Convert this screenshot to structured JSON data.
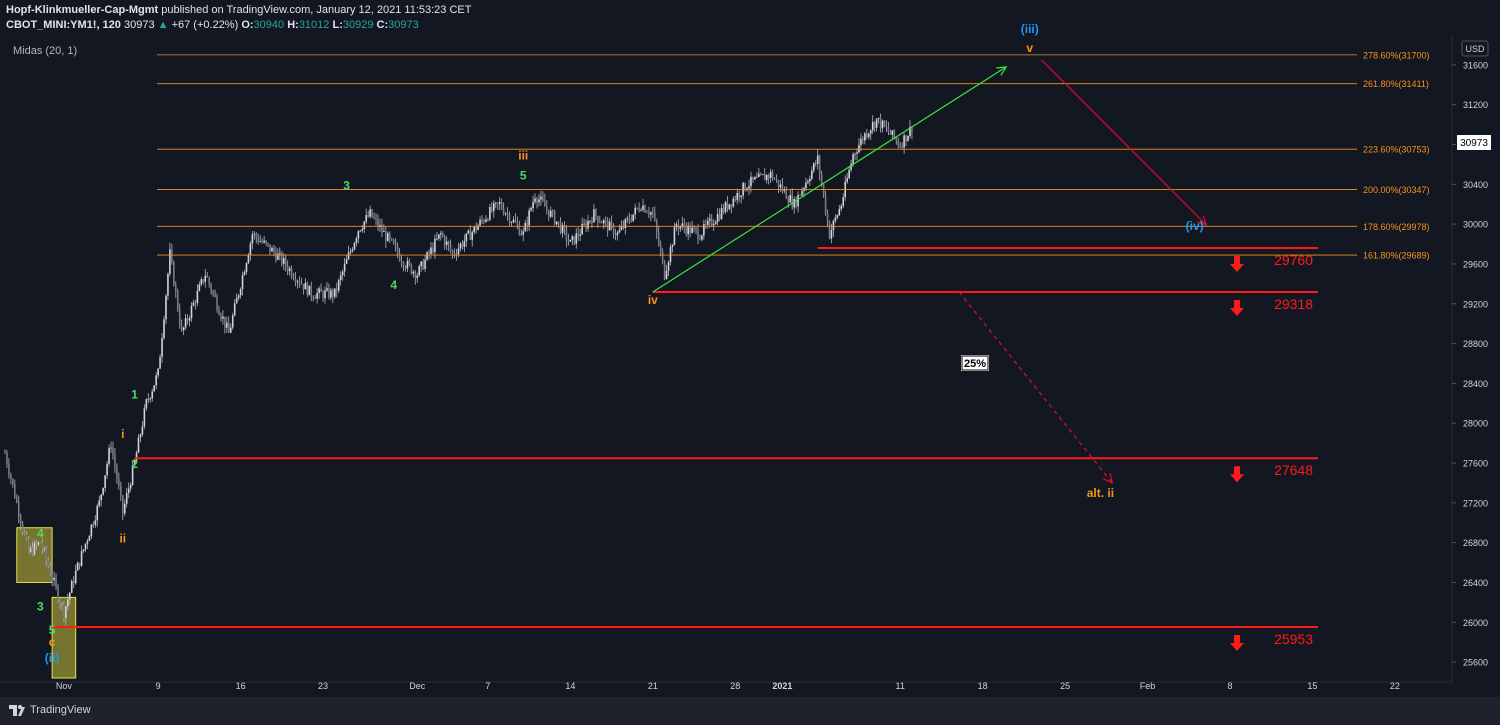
{
  "header": {
    "publisher": "Hopf-Klinkmueller-Cap-Mgmt",
    "published_text": "published on TradingView.com, January 12, 2021 11:53:23 CET",
    "symbol": "CBOT_MINI:YM1!, 120",
    "last": "30973",
    "change_arrow": "▲",
    "change": "+67 (+0.22%)",
    "o_label": "O:",
    "o": "30940",
    "h_label": "H:",
    "h": "31012",
    "l_label": "L:",
    "l": "30929",
    "c_label": "C:",
    "c": "30973"
  },
  "indicator_label": "Midas (20, 1)",
  "currency": "USD",
  "footer": {
    "brand": "TradingView",
    "brand_icon": "tradingview-logo-icon"
  },
  "colors": {
    "background": "#131722",
    "candle": "#b2b5be",
    "wave_green": "#4cd964",
    "wave_orange": "#f7931a",
    "wave_blue": "#2196f3",
    "support": "#ff1a1a",
    "fib": "#f7931a"
  },
  "chart_data": {
    "type": "candlestick",
    "title": "",
    "xlabel": "",
    "ylabel": "",
    "ylim": [
      25400,
      31900
    ],
    "xlim": [
      "2020-10-27",
      "2021-02-26"
    ],
    "y_ticks": [
      25600,
      26000,
      26400,
      26800,
      27200,
      27600,
      28000,
      28400,
      28800,
      29200,
      29600,
      30000,
      30400,
      30800,
      31200,
      31600
    ],
    "x_ticks": [
      {
        "date": "2020-11-01",
        "label": "Nov"
      },
      {
        "date": "2020-11-09",
        "label": "9"
      },
      {
        "date": "2020-11-16",
        "label": "16"
      },
      {
        "date": "2020-11-23",
        "label": "23"
      },
      {
        "date": "2020-12-01",
        "label": "Dec"
      },
      {
        "date": "2020-12-07",
        "label": "7"
      },
      {
        "date": "2020-12-14",
        "label": "14"
      },
      {
        "date": "2020-12-21",
        "label": "21"
      },
      {
        "date": "2020-12-28",
        "label": "28"
      },
      {
        "date": "2021-01-01",
        "label": "2021"
      },
      {
        "date": "2021-01-11",
        "label": "11"
      },
      {
        "date": "2021-01-18",
        "label": "18"
      },
      {
        "date": "2021-01-25",
        "label": "25"
      },
      {
        "date": "2021-02-01",
        "label": "Feb"
      },
      {
        "date": "2021-02-08",
        "label": "8"
      },
      {
        "date": "2021-02-15",
        "label": "15"
      },
      {
        "date": "2021-02-22",
        "label": "22"
      }
    ],
    "price_path": [
      [
        "2020-10-27",
        27700
      ],
      [
        "2020-10-29",
        26700
      ],
      [
        "2020-10-30",
        26800
      ],
      [
        "2020-11-01",
        26100
      ],
      [
        "2020-11-02",
        26500
      ],
      [
        "2020-11-04",
        27200
      ],
      [
        "2020-11-05",
        27800
      ],
      [
        "2020-11-06",
        27100
      ],
      [
        "2020-11-07",
        27600
      ],
      [
        "2020-11-08",
        28200
      ],
      [
        "2020-11-09",
        28500
      ],
      [
        "2020-11-10",
        29700
      ],
      [
        "2020-11-11",
        28900
      ],
      [
        "2020-11-13",
        29500
      ],
      [
        "2020-11-15",
        28900
      ],
      [
        "2020-11-17",
        29900
      ],
      [
        "2020-11-19",
        29700
      ],
      [
        "2020-11-22",
        29300
      ],
      [
        "2020-11-24",
        29300
      ],
      [
        "2020-11-26",
        29950
      ],
      [
        "2020-11-27",
        30100
      ],
      [
        "2020-11-30",
        29600
      ],
      [
        "2020-12-01",
        29500
      ],
      [
        "2020-12-03",
        29900
      ],
      [
        "2020-12-04",
        29700
      ],
      [
        "2020-12-07",
        30100
      ],
      [
        "2020-12-08",
        30200
      ],
      [
        "2020-12-10",
        29900
      ],
      [
        "2020-12-11",
        30300
      ],
      [
        "2020-12-13",
        30000
      ],
      [
        "2020-12-14",
        29800
      ],
      [
        "2020-12-16",
        30100
      ],
      [
        "2020-12-18",
        29900
      ],
      [
        "2020-12-20",
        30200
      ],
      [
        "2020-12-21",
        30100
      ],
      [
        "2020-12-22",
        29500
      ],
      [
        "2020-12-23",
        30000
      ],
      [
        "2020-12-25",
        29900
      ],
      [
        "2020-12-27",
        30150
      ],
      [
        "2020-12-29",
        30400
      ],
      [
        "2020-12-31",
        30500
      ],
      [
        "2021-01-02",
        30200
      ],
      [
        "2021-01-04",
        30650
      ],
      [
        "2021-01-05",
        29900
      ],
      [
        "2021-01-06",
        30200
      ],
      [
        "2021-01-07",
        30700
      ],
      [
        "2021-01-08",
        30900
      ],
      [
        "2021-01-09",
        31050
      ],
      [
        "2021-01-11",
        30800
      ],
      [
        "2021-01-12",
        30973
      ]
    ],
    "horizontal_levels": [
      {
        "type": "fib",
        "ratio": "278.60%",
        "value": "31700",
        "label": "278.60%(31700)"
      },
      {
        "type": "fib",
        "ratio": "261.80%",
        "value": "31411",
        "label": "261.80%(31411)"
      },
      {
        "type": "fib",
        "ratio": "223.60%",
        "value": "30753",
        "label": "223.60%(30753)"
      },
      {
        "type": "fib",
        "ratio": "200.00%",
        "value": "30347",
        "label": "200.00%(30347)"
      },
      {
        "type": "fib",
        "ratio": "178.60%",
        "value": "29978",
        "label": "178.60%(29978)"
      },
      {
        "type": "fib",
        "ratio": "161.80%",
        "value": "29689",
        "label": "161.80%(29689)"
      }
    ],
    "support_levels": [
      {
        "value": 29760,
        "label": "29760",
        "from": "2021-01-04"
      },
      {
        "value": 29318,
        "label": "29318",
        "from": "2020-12-21"
      },
      {
        "value": 27648,
        "label": "27648",
        "from": "2020-11-07"
      },
      {
        "value": 25953,
        "label": "25953",
        "from": "2020-10-31"
      }
    ],
    "wave_labels": [
      {
        "text": "4",
        "date": "2020-10-30",
        "price": 26850,
        "color": "green"
      },
      {
        "text": "3",
        "date": "2020-10-30",
        "price": 26120,
        "color": "green"
      },
      {
        "text": "5",
        "date": "2020-10-31",
        "price": 25880,
        "color": "green"
      },
      {
        "text": "c",
        "date": "2020-10-31",
        "price": 25760,
        "color": "orange"
      },
      {
        "text": "(ii)",
        "date": "2020-10-31",
        "price": 25600,
        "color": "blue"
      },
      {
        "text": "ii",
        "date": "2020-11-06",
        "price": 26800,
        "color": "orange"
      },
      {
        "text": "i",
        "date": "2020-11-06",
        "price": 27850,
        "color": "orange"
      },
      {
        "text": "2",
        "date": "2020-11-07",
        "price": 27550,
        "color": "green"
      },
      {
        "text": "1",
        "date": "2020-11-07",
        "price": 28250,
        "color": "green"
      },
      {
        "text": "3",
        "date": "2020-11-25",
        "price": 30350,
        "color": "green"
      },
      {
        "text": "4",
        "date": "2020-11-29",
        "price": 29350,
        "color": "green"
      },
      {
        "text": "iii",
        "date": "2020-12-10",
        "price": 30650,
        "color": "orange"
      },
      {
        "text": "5",
        "date": "2020-12-10",
        "price": 30450,
        "color": "green"
      },
      {
        "text": "iv",
        "date": "2020-12-21",
        "price": 29200,
        "color": "orange"
      },
      {
        "text": "(iii)",
        "date": "2021-01-22",
        "price": 31920,
        "color": "blue"
      },
      {
        "text": "v",
        "date": "2021-01-22",
        "price": 31730,
        "color": "orange"
      },
      {
        "text": "(iv)",
        "date": "2021-02-05",
        "price": 29940,
        "color": "blue"
      },
      {
        "text": "alt. ii",
        "date": "2021-01-28",
        "price": 27260,
        "color": "orange"
      }
    ],
    "arrows": [
      {
        "kind": "green",
        "from": [
          "2020-12-21",
          29318
        ],
        "to": [
          "2021-01-20",
          31580
        ]
      },
      {
        "kind": "red",
        "from": [
          "2021-01-23",
          31650
        ],
        "to": [
          "2021-02-06",
          29990
        ]
      },
      {
        "kind": "red-dashed",
        "from": [
          "2021-01-16",
          29318
        ],
        "to": [
          "2021-01-29",
          27400
        ]
      }
    ],
    "boxes": [
      {
        "from": "2020-10-28",
        "to": "2020-10-31",
        "top": 26950,
        "bottom": 26400
      },
      {
        "from": "2020-10-31",
        "to": "2020-11-02",
        "top": 26250,
        "bottom": 25440
      }
    ],
    "annotation": "25%",
    "last_price_label": "30973"
  }
}
